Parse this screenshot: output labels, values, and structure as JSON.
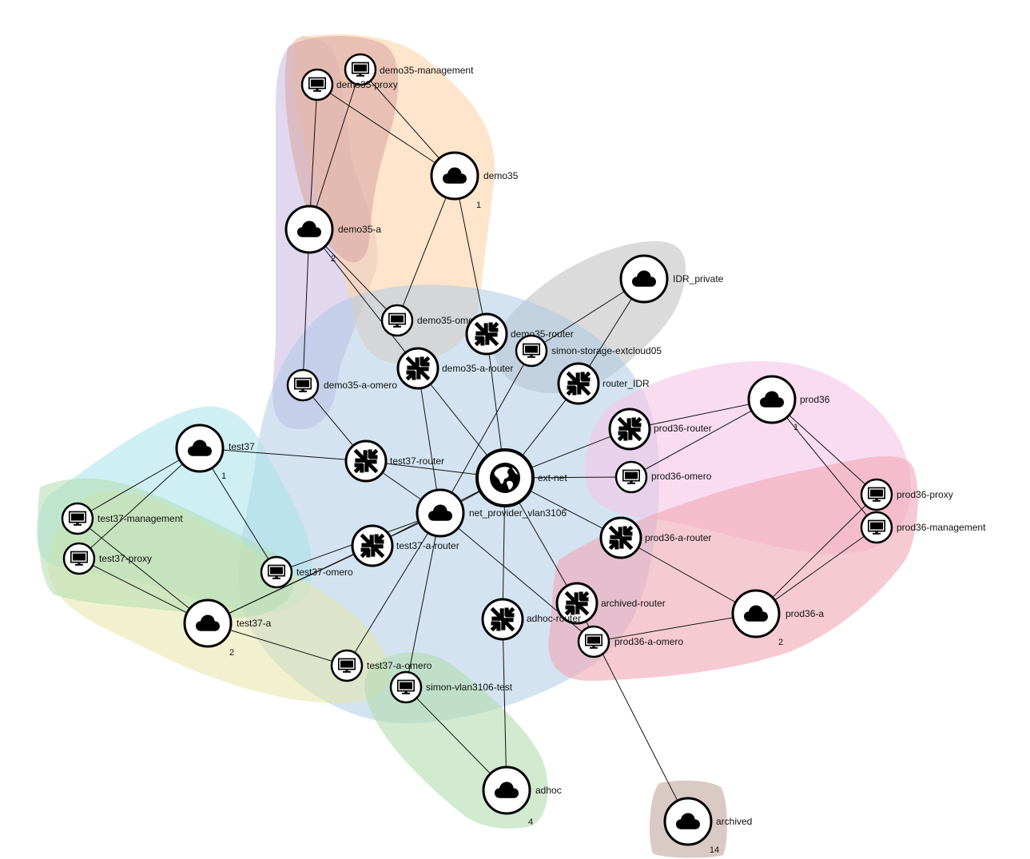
{
  "groups": [
    {
      "id": "g-demo35-a",
      "color": "#c9b6e0"
    },
    {
      "id": "g-demo35",
      "color": "#ffd3a8"
    },
    {
      "id": "g-demo35-a-brown",
      "color": "#d9a9a5"
    },
    {
      "id": "g-idr",
      "color": "#bdbdbd"
    },
    {
      "id": "g-net-provider",
      "color": "#a9c8e3"
    },
    {
      "id": "g-prod36",
      "color": "#f5c4e6"
    },
    {
      "id": "g-prod36-a",
      "color": "#f0a6b5"
    },
    {
      "id": "g-test37",
      "color": "#a8e2ea"
    },
    {
      "id": "g-test37-a",
      "color": "#e6e6a8"
    },
    {
      "id": "g-test37-green",
      "color": "#b3dcb0"
    },
    {
      "id": "g-adhoc",
      "color": "#b3dcb0"
    },
    {
      "id": "g-archived",
      "color": "#cbb3ad"
    }
  ],
  "nodes": [
    {
      "id": "demo35-management",
      "label": "demo35-management",
      "type": "server"
    },
    {
      "id": "demo35-proxy",
      "label": "demo35-proxy",
      "type": "server"
    },
    {
      "id": "demo35",
      "label": "demo35",
      "type": "network",
      "count": "1"
    },
    {
      "id": "demo35-a",
      "label": "demo35-a",
      "type": "network",
      "count": "2"
    },
    {
      "id": "demo35-omero",
      "label": "demo35-omero",
      "type": "server"
    },
    {
      "id": "demo35-router",
      "label": "demo35-router",
      "type": "router"
    },
    {
      "id": "simon-storage-extcloud05",
      "label": "simon-storage-extcloud05",
      "type": "server"
    },
    {
      "id": "IDR_private",
      "label": "IDR_private",
      "type": "network"
    },
    {
      "id": "demo35-a-router",
      "label": "demo35-a-router",
      "type": "router"
    },
    {
      "id": "demo35-a-omero",
      "label": "demo35-a-omero",
      "type": "server"
    },
    {
      "id": "router_IDR",
      "label": "router_IDR",
      "type": "router"
    },
    {
      "id": "prod36",
      "label": "prod36",
      "type": "network",
      "count": "1"
    },
    {
      "id": "prod36-router",
      "label": "prod36-router",
      "type": "router"
    },
    {
      "id": "test37",
      "label": "test37",
      "type": "network",
      "count": "1"
    },
    {
      "id": "test37-router",
      "label": "test37-router",
      "type": "router"
    },
    {
      "id": "ext-net",
      "label": "ext-net",
      "type": "external"
    },
    {
      "id": "prod36-omero",
      "label": "prod36-omero",
      "type": "server"
    },
    {
      "id": "prod36-proxy",
      "label": "prod36-proxy",
      "type": "server"
    },
    {
      "id": "test37-management",
      "label": "test37-management",
      "type": "server"
    },
    {
      "id": "net_provider_vlan3106",
      "label": "net_provider_vlan3106",
      "type": "network"
    },
    {
      "id": "prod36-management",
      "label": "prod36-management",
      "type": "server"
    },
    {
      "id": "test37-proxy",
      "label": "test37-proxy",
      "type": "server"
    },
    {
      "id": "test37-a-router",
      "label": "test37-a-router",
      "type": "router"
    },
    {
      "id": "prod36-a-router",
      "label": "prod36-a-router",
      "type": "router"
    },
    {
      "id": "test37-omero",
      "label": "test37-omero",
      "type": "server"
    },
    {
      "id": "archived-router",
      "label": "archived-router",
      "type": "router"
    },
    {
      "id": "test37-a",
      "label": "test37-a",
      "type": "network",
      "count": "2"
    },
    {
      "id": "adhoc-router",
      "label": "adhoc-router",
      "type": "router"
    },
    {
      "id": "prod36-a",
      "label": "prod36-a",
      "type": "network",
      "count": "2"
    },
    {
      "id": "prod36-a-omero",
      "label": "prod36-a-omero",
      "type": "server"
    },
    {
      "id": "test37-a-omero",
      "label": "test37-a-omero",
      "type": "server"
    },
    {
      "id": "simon-vlan3106-test",
      "label": "simon-vlan3106-test",
      "type": "server"
    },
    {
      "id": "adhoc",
      "label": "adhoc",
      "type": "network",
      "count": "4"
    },
    {
      "id": "archived",
      "label": "archived",
      "type": "network",
      "count": "14"
    }
  ],
  "edges": [
    [
      "demo35-proxy",
      "demo35"
    ],
    [
      "demo35-management",
      "demo35"
    ],
    [
      "demo35-proxy",
      "demo35-a"
    ],
    [
      "demo35-management",
      "demo35-a"
    ],
    [
      "demo35",
      "demo35-omero"
    ],
    [
      "demo35-a",
      "demo35-omero"
    ],
    [
      "demo35",
      "demo35-router"
    ],
    [
      "demo35-a",
      "demo35-a-router"
    ],
    [
      "demo35-a",
      "demo35-a-omero"
    ],
    [
      "demo35-router",
      "ext-net"
    ],
    [
      "demo35-a-router",
      "ext-net"
    ],
    [
      "demo35-a-router",
      "net_provider_vlan3106"
    ],
    [
      "IDR_private",
      "simon-storage-extcloud05"
    ],
    [
      "IDR_private",
      "router_IDR"
    ],
    [
      "router_IDR",
      "ext-net"
    ],
    [
      "simon-storage-extcloud05",
      "net_provider_vlan3106"
    ],
    [
      "demo35-a-omero",
      "test37-router"
    ],
    [
      "prod36",
      "prod36-router"
    ],
    [
      "prod36",
      "prod36-omero"
    ],
    [
      "prod36",
      "prod36-proxy"
    ],
    [
      "prod36",
      "prod36-management"
    ],
    [
      "prod36-router",
      "ext-net"
    ],
    [
      "test37",
      "test37-router"
    ],
    [
      "test37",
      "test37-management"
    ],
    [
      "test37",
      "test37-proxy"
    ],
    [
      "test37",
      "test37-omero"
    ],
    [
      "test37-router",
      "ext-net"
    ],
    [
      "test37-router",
      "net_provider_vlan3106"
    ],
    [
      "ext-net",
      "prod36-omero"
    ],
    [
      "ext-net",
      "net_provider_vlan3106"
    ],
    [
      "ext-net",
      "prod36-a-router"
    ],
    [
      "ext-net",
      "test37-a-router"
    ],
    [
      "ext-net",
      "archived-router"
    ],
    [
      "ext-net",
      "adhoc-router"
    ],
    [
      "test37-management",
      "test37-a"
    ],
    [
      "test37-proxy",
      "test37-a"
    ],
    [
      "net_provider_vlan3106",
      "test37-omero"
    ],
    [
      "net_provider_vlan3106",
      "test37-a"
    ],
    [
      "net_provider_vlan3106",
      "test37-a-omero"
    ],
    [
      "net_provider_vlan3106",
      "simon-vlan3106-test"
    ],
    [
      "net_provider_vlan3106",
      "prod36-a-omero"
    ],
    [
      "test37-a-router",
      "test37-a"
    ],
    [
      "test37-a",
      "test37-a-omero"
    ],
    [
      "prod36-a-router",
      "prod36-a"
    ],
    [
      "prod36-proxy",
      "prod36-a"
    ],
    [
      "prod36-management",
      "prod36-a"
    ],
    [
      "prod36-a",
      "prod36-a-omero"
    ],
    [
      "archived-router",
      "archived"
    ],
    [
      "adhoc-router",
      "adhoc"
    ],
    [
      "simon-vlan3106-test",
      "adhoc"
    ]
  ]
}
